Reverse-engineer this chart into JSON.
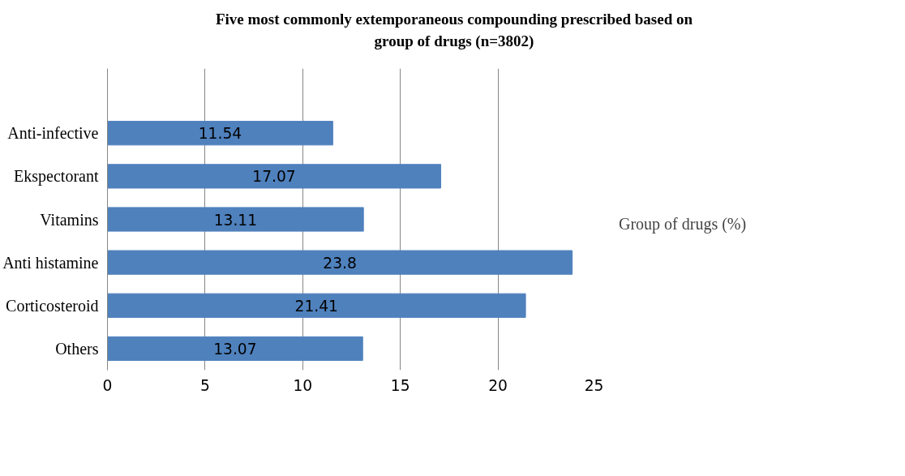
{
  "chart_data": {
    "type": "bar",
    "orientation": "horizontal",
    "title": "Five most commonly extemporaneous compounding prescribed based on group of drugs (n=3802)",
    "categories": [
      null,
      "Anti-infective",
      "Ekspectorant",
      "Vitamins",
      "Anti histamine",
      "Corticosteroid",
      "Others"
    ],
    "series": [
      {
        "name": "Group of drugs (%)",
        "color": "#4f81bd",
        "values": [
          null,
          11.54,
          17.07,
          13.11,
          23.8,
          21.41,
          13.07
        ]
      }
    ],
    "data_labels": true,
    "xlim": [
      0,
      25
    ],
    "xticks": [
      0,
      5,
      10,
      15,
      20,
      25
    ],
    "grid": "x",
    "legend": "right"
  }
}
